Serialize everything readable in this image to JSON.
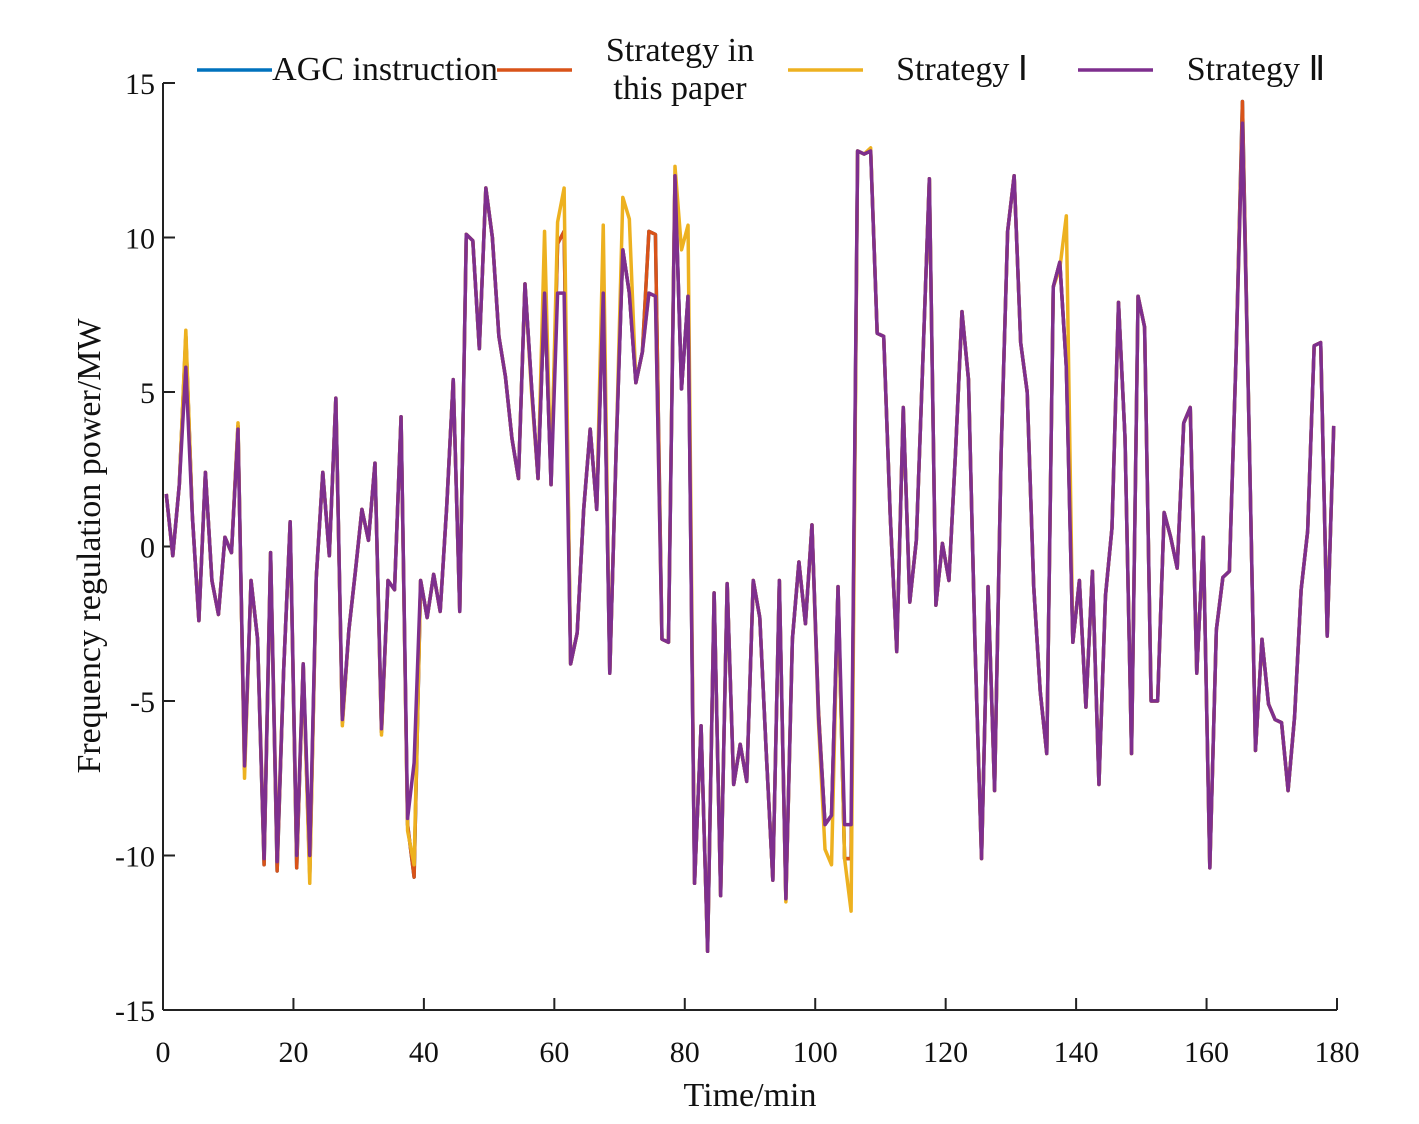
{
  "chart_data": {
    "type": "line",
    "xlabel": "Time/min",
    "ylabel": "Frequency regulation power/MW",
    "xlim": [
      0,
      180
    ],
    "ylim": [
      -15,
      15
    ],
    "xticks": [
      0,
      20,
      40,
      60,
      80,
      100,
      120,
      140,
      160,
      180
    ],
    "yticks": [
      -15,
      -10,
      -5,
      0,
      5,
      10,
      15
    ],
    "grid": false,
    "legend": "top",
    "x": [
      0.5,
      1.5,
      2.5,
      3.5,
      4.5,
      5.5,
      6.5,
      7.5,
      8.5,
      9.5,
      10.5,
      11.5,
      12.5,
      13.5,
      14.5,
      15.5,
      16.5,
      17.5,
      18.5,
      19.5,
      20.5,
      21.5,
      22.5,
      23.5,
      24.5,
      25.5,
      26.5,
      27.5,
      28.5,
      29.5,
      30.5,
      31.5,
      32.5,
      33.5,
      34.5,
      35.5,
      36.5,
      37.5,
      38.5,
      39.5,
      40.5,
      41.5,
      42.5,
      43.5,
      44.5,
      45.5,
      46.5,
      47.5,
      48.5,
      49.5,
      50.5,
      51.5,
      52.5,
      53.5,
      54.5,
      55.5,
      56.5,
      57.5,
      58.5,
      59.5,
      60.5,
      61.5,
      62.5,
      63.5,
      64.5,
      65.5,
      66.5,
      67.5,
      68.5,
      69.5,
      70.5,
      71.5,
      72.5,
      73.5,
      74.5,
      75.5,
      76.5,
      77.5,
      78.5,
      79.5,
      80.5,
      81.5,
      82.5,
      83.5,
      84.5,
      85.5,
      86.5,
      87.5,
      88.5,
      89.5,
      90.5,
      91.5,
      92.5,
      93.5,
      94.5,
      95.5,
      96.5,
      97.5,
      98.5,
      99.5,
      100.5,
      101.5,
      102.5,
      103.5,
      104.5,
      105.5,
      106.5,
      107.5,
      108.5,
      109.5,
      110.5,
      111.5,
      112.5,
      113.5,
      114.5,
      115.5,
      116.5,
      117.5,
      118.5,
      119.5,
      120.5,
      121.5,
      122.5,
      123.5,
      124.5,
      125.5,
      126.5,
      127.5,
      128.5,
      129.5,
      130.5,
      131.5,
      132.5,
      133.5,
      134.5,
      135.5,
      136.5,
      137.5,
      138.5,
      139.5,
      140.5,
      141.5,
      142.5,
      143.5,
      144.5,
      145.5,
      146.5,
      147.5,
      148.5,
      149.5,
      150.5,
      151.5,
      152.5,
      153.5,
      154.5,
      155.5,
      156.5,
      157.5,
      158.5,
      159.5,
      160.5,
      161.5,
      162.5,
      163.5,
      164.5,
      165.5,
      166.5,
      167.5,
      168.5,
      169.5,
      170.5,
      171.5,
      172.5,
      173.5,
      174.5,
      175.5,
      176.5,
      177.5,
      178.5,
      179.5
    ],
    "series": [
      {
        "name": "AGC instruction",
        "color": "#0072BD",
        "values": [
          1.7,
          -0.3,
          2,
          6.8,
          1,
          -2.4,
          2.4,
          -1.1,
          -2.2,
          0.3,
          -0.2,
          3.9,
          -7.2,
          -1.1,
          -3,
          -10.3,
          -0.2,
          -10.5,
          -4,
          0.8,
          -10.4,
          -3.8,
          -10.6,
          -1,
          2.4,
          -0.3,
          4.8,
          -5.7,
          -2.7,
          -0.8,
          1.2,
          0.2,
          2.7,
          -6,
          -1.1,
          -1.4,
          4.2,
          -9,
          -10.7,
          -1.1,
          -2.3,
          -0.9,
          -2.1,
          1.3,
          5.4,
          -2.1,
          10.1,
          9.9,
          6.4,
          11.6,
          10,
          6.8,
          5.5,
          3.5,
          2.2,
          8.5,
          5.2,
          2.2,
          8.2,
          2,
          9.8,
          10.2,
          -3.8,
          -2.8,
          1.2,
          3.8,
          1.2,
          8.2,
          -4.1,
          3.3,
          9.6,
          8.2,
          5.3,
          6.3,
          10.2,
          10.1,
          -3,
          -3.1,
          12,
          5.1,
          8.1,
          -10.9,
          -5.8,
          -13.1,
          -1.5,
          -11.3,
          -1.2,
          -7.7,
          -6.4,
          -7.6,
          -1.1,
          -2.3,
          -6.7,
          -10.8,
          -1.1,
          -11.4,
          -3,
          -0.5,
          -2.5,
          0.7,
          -5.3,
          -9,
          -8.7,
          -1.3,
          -10.1,
          -10.1,
          12.8,
          12.7,
          12.8,
          6.9,
          6.8,
          1,
          -3.4,
          4.5,
          -1.8,
          0.2,
          6,
          11.9,
          -1.9,
          0.1,
          -1.1,
          3,
          7.6,
          5.4,
          -3.2,
          -10.1,
          -1.3,
          -7.9,
          3,
          10.2,
          12,
          6.6,
          5,
          -1.3,
          -4.7,
          -6.7,
          8.4,
          9.2,
          5.8,
          -3.1,
          -1.1,
          -5.2,
          -0.8,
          -7.7,
          -1.6,
          0.6,
          7.9,
          3.5,
          -6.7,
          8.1,
          7.1,
          -5,
          -5,
          1.1,
          0.3,
          -0.7,
          4,
          4.5,
          -4.1,
          0.3,
          -10.4,
          -2.7,
          -1,
          -0.8,
          6,
          14.4,
          4,
          -6.6,
          -3,
          -5.1,
          -5.6,
          -5.7,
          -7.9,
          -5.5,
          -1.4,
          0.5,
          6.5,
          6.6,
          -2.9,
          3.9
        ]
      },
      {
        "name": "Strategy in this paper",
        "color": "#D95319",
        "values": [
          1.7,
          -0.3,
          2,
          6.8,
          1,
          -2.4,
          2.4,
          -1.1,
          -2.2,
          0.3,
          -0.2,
          3.9,
          -7.2,
          -1.1,
          -3,
          -10.3,
          -0.2,
          -10.5,
          -4,
          0.8,
          -10.4,
          -3.8,
          -10.6,
          -1,
          2.4,
          -0.3,
          4.8,
          -5.7,
          -2.7,
          -0.8,
          1.2,
          0.2,
          2.7,
          -6,
          -1.1,
          -1.4,
          4.2,
          -9,
          -10.7,
          -1.1,
          -2.3,
          -0.9,
          -2.1,
          1.3,
          5.4,
          -2.1,
          10.1,
          9.9,
          6.4,
          11.6,
          10,
          6.8,
          5.5,
          3.5,
          2.2,
          8.5,
          5.2,
          2.2,
          8.2,
          2,
          9.8,
          10.2,
          -3.8,
          -2.8,
          1.2,
          3.8,
          1.2,
          8.2,
          -4.1,
          3.3,
          9.6,
          8.2,
          5.3,
          6.3,
          10.2,
          10.1,
          -3,
          -3.1,
          12,
          5.1,
          8.1,
          -10.9,
          -5.8,
          -13.1,
          -1.5,
          -11.3,
          -1.2,
          -7.7,
          -6.4,
          -7.6,
          -1.1,
          -2.3,
          -6.7,
          -10.8,
          -1.1,
          -11.4,
          -3,
          -0.5,
          -2.5,
          0.7,
          -5.3,
          -9,
          -8.7,
          -1.3,
          -10.1,
          -10.1,
          12.8,
          12.7,
          12.8,
          6.9,
          6.8,
          1,
          -3.4,
          4.5,
          -1.8,
          0.2,
          6,
          11.9,
          -1.9,
          0.1,
          -1.1,
          3,
          7.6,
          5.4,
          -3.2,
          -10.1,
          -1.3,
          -7.9,
          3,
          10.2,
          12,
          6.6,
          5,
          -1.3,
          -4.7,
          -6.7,
          8.4,
          9.2,
          5.8,
          -3.1,
          -1.1,
          -5.2,
          -0.8,
          -7.7,
          -1.6,
          0.6,
          7.9,
          3.5,
          -6.7,
          8.1,
          7.1,
          -5,
          -5,
          1.1,
          0.3,
          -0.7,
          4,
          4.5,
          -4.1,
          0.3,
          -10.4,
          -2.7,
          -1,
          -0.8,
          6,
          14.4,
          4,
          -6.6,
          -3,
          -5.1,
          -5.6,
          -5.7,
          -7.9,
          -5.5,
          -1.4,
          0.5,
          6.5,
          6.6,
          -2.9,
          3.9
        ]
      },
      {
        "name": "Strategy Ⅰ",
        "color": "#EDB120",
        "values": [
          1.7,
          -0.3,
          2,
          7,
          1,
          -2.4,
          2.4,
          -1.1,
          -2.2,
          0.3,
          -0.2,
          4,
          -7.5,
          -1.1,
          -3,
          -9.9,
          -0.2,
          -10,
          -4,
          0.8,
          -10,
          -3.8,
          -10.9,
          -1,
          2.4,
          -0.3,
          4.8,
          -5.8,
          -2.7,
          -0.8,
          1.2,
          0.2,
          2.7,
          -6.1,
          -1.1,
          -1.4,
          4.2,
          -9.2,
          -10.3,
          -1.1,
          -2.3,
          -0.9,
          -2.1,
          1.3,
          5.4,
          -2.1,
          10.1,
          9.9,
          6.4,
          11.6,
          10,
          6.8,
          5.5,
          3.5,
          2.2,
          8.5,
          5,
          2.2,
          10.2,
          2,
          10.5,
          11.6,
          -3.8,
          -2.8,
          1.2,
          3.8,
          1.2,
          10.4,
          -4.1,
          3.3,
          11.3,
          10.6,
          5.3,
          6.3,
          8.2,
          8.1,
          -3,
          -3.1,
          12.3,
          9.6,
          10.4,
          -10.9,
          -5.8,
          -13.1,
          -1.5,
          -11.3,
          -1.2,
          -7.7,
          -6.4,
          -7.6,
          -1.1,
          -2.3,
          -6.7,
          -10.8,
          -1.1,
          -11.5,
          -3,
          -0.5,
          -2.5,
          0.7,
          -5.7,
          -9.8,
          -10.3,
          -1.3,
          -10.1,
          -11.8,
          12.8,
          12.7,
          12.9,
          6.9,
          6.8,
          1,
          -3.4,
          4.5,
          -1.8,
          0.2,
          6,
          11.9,
          -1.9,
          0.1,
          -1.1,
          3,
          7.6,
          5.4,
          -3.2,
          -10.1,
          -1.3,
          -7.9,
          3,
          10.2,
          12,
          6.6,
          5,
          -1.3,
          -4.7,
          -6.7,
          8.4,
          9,
          10.7,
          -3.1,
          -1.1,
          -5.2,
          -0.8,
          -7.7,
          -1.6,
          0.6,
          7.9,
          3.5,
          -6.7,
          8.1,
          7.1,
          -5,
          -5,
          1.1,
          0.3,
          -0.7,
          4,
          4.5,
          -4.1,
          0.3,
          -10.4,
          -2.7,
          -1,
          -0.8,
          6,
          13.7,
          4,
          -6.6,
          -3,
          -5.1,
          -5.6,
          -5.7,
          -7.9,
          -5.5,
          -1.4,
          0.5,
          6.5,
          6.6,
          -2.9,
          3.9
        ]
      },
      {
        "name": "Strategy Ⅱ",
        "color": "#7E2F8E",
        "values": [
          1.7,
          -0.3,
          2,
          5.8,
          1,
          -2.4,
          2.4,
          -1.1,
          -2.2,
          0.3,
          -0.2,
          3.8,
          -7.1,
          -1.1,
          -3,
          -10.1,
          -0.2,
          -10.2,
          -4,
          0.8,
          -10,
          -3.8,
          -10,
          -1,
          2.4,
          -0.3,
          4.8,
          -5.6,
          -2.7,
          -0.8,
          1.2,
          0.2,
          2.7,
          -5.9,
          -1.1,
          -1.4,
          4.2,
          -8.8,
          -7,
          -1.1,
          -2.3,
          -0.9,
          -2.1,
          1.3,
          5.4,
          -2.1,
          10.1,
          9.9,
          6.4,
          11.6,
          10,
          6.8,
          5.5,
          3.5,
          2.2,
          8.5,
          5.2,
          2.2,
          8.2,
          2,
          8.2,
          8.2,
          -3.8,
          -2.8,
          1.2,
          3.8,
          1.2,
          8.2,
          -4.1,
          3.3,
          9.6,
          8.2,
          5.3,
          6.3,
          8.2,
          8.1,
          -3,
          -3.1,
          12,
          5.1,
          8.1,
          -10.9,
          -5.8,
          -13.1,
          -1.5,
          -11.3,
          -1.2,
          -7.7,
          -6.4,
          -7.6,
          -1.1,
          -2.3,
          -6.7,
          -10.8,
          -1.1,
          -11.4,
          -3,
          -0.5,
          -2.5,
          0.7,
          -5.5,
          -9,
          -8.7,
          -1.3,
          -9,
          -9,
          12.8,
          12.7,
          12.8,
          6.9,
          6.8,
          1,
          -3.4,
          4.5,
          -1.8,
          0.2,
          6,
          11.9,
          -1.9,
          0.1,
          -1.1,
          3,
          7.6,
          5.4,
          -3.2,
          -10.1,
          -1.3,
          -7.9,
          3,
          10.2,
          12,
          6.6,
          5,
          -1.3,
          -4.7,
          -6.7,
          8.4,
          9.2,
          5.8,
          -3.1,
          -1.1,
          -5.2,
          -0.8,
          -7.7,
          -1.6,
          0.6,
          7.9,
          3.5,
          -6.7,
          8.1,
          7.1,
          -5,
          -5,
          1.1,
          0.3,
          -0.7,
          4,
          4.5,
          -4.1,
          0.3,
          -10.4,
          -2.7,
          -1,
          -0.8,
          6,
          13.7,
          4,
          -6.6,
          -3,
          -5.1,
          -5.6,
          -5.7,
          -7.9,
          -5.5,
          -1.4,
          0.5,
          6.5,
          6.6,
          -2.9,
          3.9
        ]
      }
    ]
  }
}
